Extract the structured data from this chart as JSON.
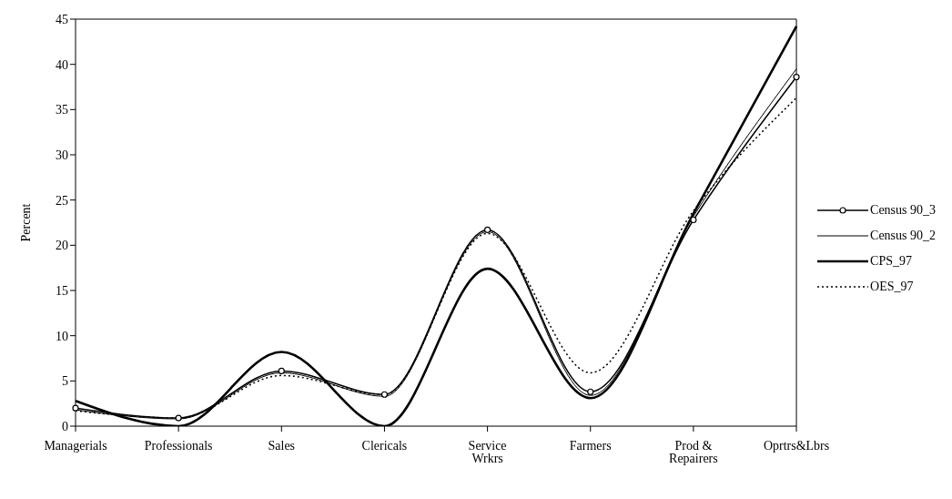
{
  "chart_data": {
    "type": "line",
    "ylabel": "Percent",
    "categories": [
      "Managerials",
      "Professionals",
      "Sales",
      "Clericals",
      "Service Wrkrs",
      "Farmers",
      "Prod & Repairers",
      "Oprtrs&Lbrs"
    ],
    "series": [
      {
        "name": "Census 90_3",
        "color": "#000000",
        "marker": "circle",
        "line_style": "solid",
        "values": [
          2.0,
          0.9,
          6.1,
          3.5,
          21.7,
          3.8,
          22.8,
          38.6
        ]
      },
      {
        "name": "Census 90_2",
        "color": "#000000",
        "marker": "none",
        "line_style": "solid",
        "values": [
          1.8,
          0.8,
          5.9,
          3.3,
          21.5,
          3.4,
          23.2,
          39.5
        ]
      },
      {
        "name": "CPS_97",
        "color": "#000000",
        "marker": "none",
        "line_style": "solid",
        "values": [
          2.8,
          0.0,
          8.2,
          0.0,
          17.4,
          3.1,
          23.5,
          44.2
        ]
      },
      {
        "name": "OES_97",
        "color": "#000000",
        "marker": "none",
        "line_style": "dotted",
        "values": [
          1.7,
          0.9,
          5.6,
          3.5,
          21.3,
          5.9,
          23.8,
          36.3
        ]
      }
    ],
    "ylim": [
      0,
      45
    ],
    "yticks": [
      0,
      5,
      10,
      15,
      20,
      25,
      30,
      35,
      40,
      45
    ],
    "grid": false,
    "legend": "right"
  }
}
